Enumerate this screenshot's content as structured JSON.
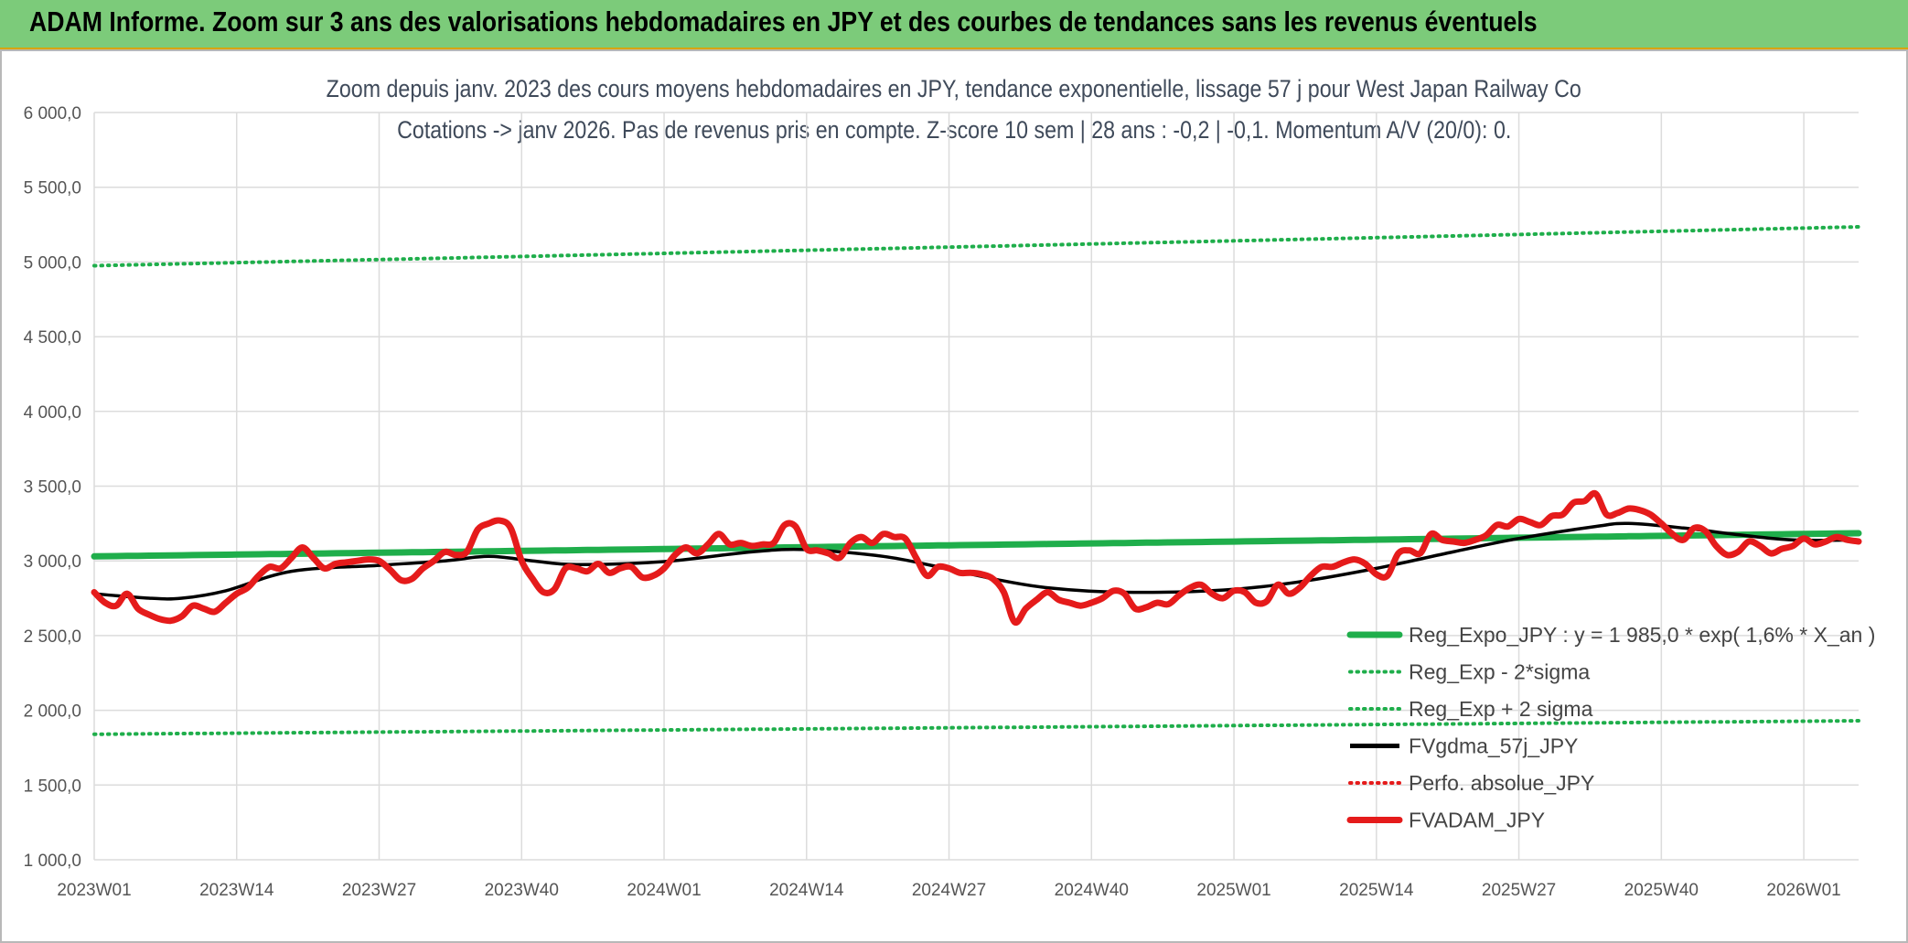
{
  "banner": {
    "title": "ADAM Informe. Zoom sur 3 ans des valorisations hebdomadaires en JPY et des courbes de tendances sans les revenus éventuels",
    "bg_color": "#7ccb7a"
  },
  "chart_data": {
    "type": "line",
    "title_line1": "Zoom depuis janv. 2023 des cours moyens hebdomadaires en JPY, tendance exponentielle, lissage 57 j pour West Japan Railway Co",
    "title_line2": "Cotations -> janv 2026. Pas de revenus pris en compte. Z-score 10 sem | 28 ans : -0,2 | -0,1. Momentum A/V (20/0): 0.",
    "ylim": [
      1000,
      6000
    ],
    "y_ticks": [
      "6 000,0",
      "5 500,0",
      "5 000,0",
      "4 500,0",
      "4 000,0",
      "3 500,0",
      "3 000,0",
      "2 500,0",
      "2 000,0",
      "1 500,0",
      "1 000,0"
    ],
    "y_tick_values": [
      6000,
      5500,
      5000,
      4500,
      4000,
      3500,
      3000,
      2500,
      2000,
      1500,
      1000
    ],
    "x_ticks": [
      "2023W01",
      "2023W14",
      "2023W27",
      "2023W40",
      "2024W01",
      "2024W14",
      "2024W27",
      "2024W40",
      "2025W01",
      "2025W14",
      "2025W27",
      "2025W40",
      "2026W01"
    ],
    "x_tick_index": [
      0,
      13,
      26,
      39,
      52,
      65,
      78,
      91,
      104,
      117,
      130,
      143,
      156
    ],
    "n_points": 162,
    "grid": true,
    "legend_position": "bottom-right",
    "series": [
      {
        "name": "Reg_Expo_JPY : y = 1 985,0 * exp( 1,6% *  X_an )",
        "style": "thick",
        "color": "#1fae4b",
        "start": 3030,
        "end": 3185
      },
      {
        "name": "Reg_Exp - 2*sigma",
        "style": "dotted",
        "color": "#1fae4b",
        "start": 1840,
        "end": 1930
      },
      {
        "name": "Reg_Exp + 2 sigma",
        "style": "dotted",
        "color": "#1fae4b",
        "start": 4975,
        "end": 5235
      },
      {
        "name": "FVgdma_57j_JPY",
        "style": "solid",
        "color": "#000000",
        "points": [
          [
            0,
            2780
          ],
          [
            5,
            2750
          ],
          [
            8,
            2750
          ],
          [
            12,
            2800
          ],
          [
            18,
            2930
          ],
          [
            26,
            2970
          ],
          [
            32,
            3000
          ],
          [
            36,
            3030
          ],
          [
            40,
            3000
          ],
          [
            44,
            2975
          ],
          [
            52,
            2995
          ],
          [
            60,
            3060
          ],
          [
            65,
            3075
          ],
          [
            72,
            3030
          ],
          [
            77,
            2960
          ],
          [
            82,
            2880
          ],
          [
            87,
            2820
          ],
          [
            94,
            2790
          ],
          [
            103,
            2805
          ],
          [
            110,
            2860
          ],
          [
            117,
            2950
          ],
          [
            124,
            3060
          ],
          [
            130,
            3150
          ],
          [
            137,
            3230
          ],
          [
            140,
            3250
          ],
          [
            145,
            3220
          ],
          [
            150,
            3175
          ],
          [
            155,
            3140
          ],
          [
            161,
            3140
          ]
        ]
      },
      {
        "name": "Perfo. absolue_JPY",
        "style": "dotted",
        "color": "#e51b1b",
        "points": []
      },
      {
        "name": "FVADAM_JPY",
        "style": "thick",
        "color": "#e51b1b",
        "points": [
          [
            0,
            2790
          ],
          [
            1,
            2720
          ],
          [
            2,
            2700
          ],
          [
            3,
            2780
          ],
          [
            4,
            2680
          ],
          [
            5,
            2640
          ],
          [
            6,
            2610
          ],
          [
            7,
            2600
          ],
          [
            8,
            2630
          ],
          [
            9,
            2700
          ],
          [
            10,
            2680
          ],
          [
            11,
            2660
          ],
          [
            12,
            2720
          ],
          [
            13,
            2780
          ],
          [
            14,
            2820
          ],
          [
            15,
            2900
          ],
          [
            16,
            2960
          ],
          [
            17,
            2950
          ],
          [
            18,
            3020
          ],
          [
            19,
            3090
          ],
          [
            20,
            3020
          ],
          [
            21,
            2950
          ],
          [
            22,
            2980
          ],
          [
            23,
            2990
          ],
          [
            24,
            3000
          ],
          [
            25,
            3010
          ],
          [
            26,
            3000
          ],
          [
            27,
            2940
          ],
          [
            28,
            2870
          ],
          [
            29,
            2880
          ],
          [
            30,
            2950
          ],
          [
            31,
            3000
          ],
          [
            32,
            3060
          ],
          [
            33,
            3040
          ],
          [
            34,
            3060
          ],
          [
            35,
            3210
          ],
          [
            36,
            3250
          ],
          [
            37,
            3270
          ],
          [
            38,
            3220
          ],
          [
            39,
            3000
          ],
          [
            40,
            2880
          ],
          [
            41,
            2790
          ],
          [
            42,
            2810
          ],
          [
            43,
            2950
          ],
          [
            44,
            2950
          ],
          [
            45,
            2930
          ],
          [
            46,
            2980
          ],
          [
            47,
            2920
          ],
          [
            48,
            2950
          ],
          [
            49,
            2960
          ],
          [
            50,
            2890
          ],
          [
            51,
            2900
          ],
          [
            52,
            2950
          ],
          [
            53,
            3040
          ],
          [
            54,
            3090
          ],
          [
            55,
            3050
          ],
          [
            56,
            3110
          ],
          [
            57,
            3180
          ],
          [
            58,
            3110
          ],
          [
            59,
            3120
          ],
          [
            60,
            3100
          ],
          [
            61,
            3110
          ],
          [
            62,
            3120
          ],
          [
            63,
            3240
          ],
          [
            64,
            3230
          ],
          [
            65,
            3080
          ],
          [
            66,
            3070
          ],
          [
            67,
            3050
          ],
          [
            68,
            3020
          ],
          [
            69,
            3120
          ],
          [
            70,
            3160
          ],
          [
            71,
            3120
          ],
          [
            72,
            3180
          ],
          [
            73,
            3160
          ],
          [
            74,
            3150
          ],
          [
            75,
            3020
          ],
          [
            76,
            2900
          ],
          [
            77,
            2960
          ],
          [
            78,
            2950
          ],
          [
            79,
            2920
          ],
          [
            80,
            2920
          ],
          [
            81,
            2910
          ],
          [
            82,
            2880
          ],
          [
            83,
            2790
          ],
          [
            84,
            2590
          ],
          [
            85,
            2680
          ],
          [
            86,
            2740
          ],
          [
            87,
            2790
          ],
          [
            88,
            2740
          ],
          [
            89,
            2720
          ],
          [
            90,
            2700
          ],
          [
            91,
            2720
          ],
          [
            92,
            2750
          ],
          [
            93,
            2800
          ],
          [
            94,
            2780
          ],
          [
            95,
            2680
          ],
          [
            96,
            2690
          ],
          [
            97,
            2720
          ],
          [
            98,
            2710
          ],
          [
            99,
            2770
          ],
          [
            100,
            2820
          ],
          [
            101,
            2840
          ],
          [
            102,
            2780
          ],
          [
            103,
            2750
          ],
          [
            104,
            2800
          ],
          [
            105,
            2790
          ],
          [
            106,
            2720
          ],
          [
            107,
            2730
          ],
          [
            108,
            2840
          ],
          [
            109,
            2780
          ],
          [
            110,
            2820
          ],
          [
            111,
            2900
          ],
          [
            112,
            2960
          ],
          [
            113,
            2960
          ],
          [
            114,
            2990
          ],
          [
            115,
            3010
          ],
          [
            116,
            2980
          ],
          [
            117,
            2910
          ],
          [
            118,
            2900
          ],
          [
            119,
            3050
          ],
          [
            120,
            3070
          ],
          [
            121,
            3050
          ],
          [
            122,
            3180
          ],
          [
            123,
            3140
          ],
          [
            124,
            3130
          ],
          [
            125,
            3120
          ],
          [
            126,
            3140
          ],
          [
            127,
            3170
          ],
          [
            128,
            3240
          ],
          [
            129,
            3230
          ],
          [
            130,
            3280
          ],
          [
            131,
            3260
          ],
          [
            132,
            3240
          ],
          [
            133,
            3300
          ],
          [
            134,
            3310
          ],
          [
            135,
            3390
          ],
          [
            136,
            3400
          ],
          [
            137,
            3450
          ],
          [
            138,
            3310
          ],
          [
            139,
            3320
          ],
          [
            140,
            3350
          ],
          [
            141,
            3340
          ],
          [
            142,
            3310
          ],
          [
            143,
            3250
          ],
          [
            144,
            3180
          ],
          [
            145,
            3140
          ],
          [
            146,
            3220
          ],
          [
            147,
            3200
          ],
          [
            148,
            3100
          ],
          [
            149,
            3040
          ],
          [
            150,
            3060
          ],
          [
            151,
            3130
          ],
          [
            152,
            3100
          ],
          [
            153,
            3050
          ],
          [
            154,
            3080
          ],
          [
            155,
            3100
          ],
          [
            156,
            3150
          ],
          [
            157,
            3110
          ],
          [
            158,
            3130
          ],
          [
            159,
            3160
          ],
          [
            160,
            3140
          ],
          [
            161,
            3130
          ]
        ]
      }
    ]
  }
}
